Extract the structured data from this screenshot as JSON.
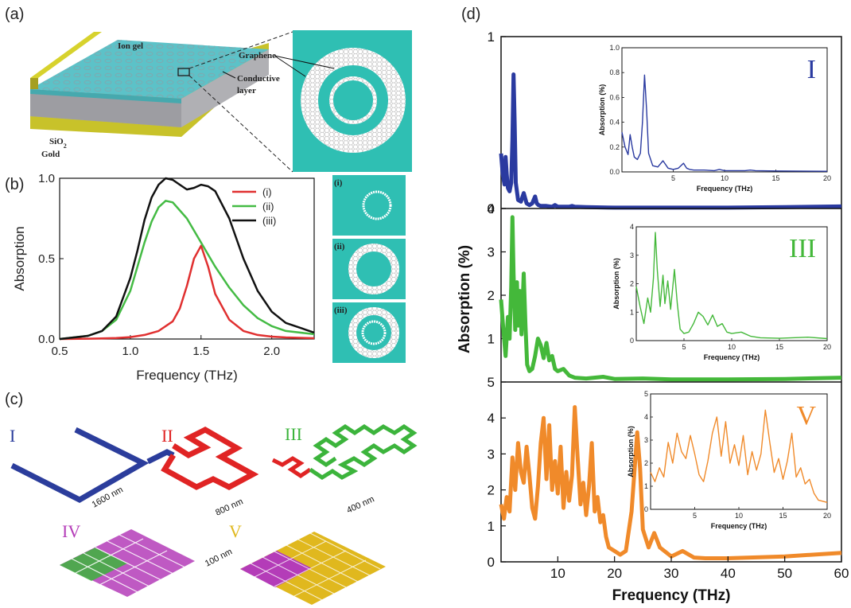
{
  "panels": {
    "a": {
      "label": "(a)",
      "layers": {
        "ion_gel": "Ion gel",
        "sio2_main": "SiO",
        "sio2_sub": "2",
        "gold": "Gold",
        "graphene": "Graphene",
        "conductive_line1": "Conductive",
        "conductive_line2": "layer"
      },
      "colors": {
        "teal": "#2fbfb3",
        "gold": "#c8c22a",
        "gray": "#a9a9ad"
      }
    },
    "b": {
      "label": "(b)",
      "inset_labels": [
        "(i)",
        "(ii)",
        "(iii)"
      ]
    },
    "c": {
      "label": "(c)",
      "orders": [
        "I",
        "II",
        "III",
        "IV",
        "V"
      ],
      "dimensions": [
        "1600 nm",
        "800 nm",
        "400 nm",
        "100 nm"
      ],
      "colors": {
        "I": "#2b3d9c",
        "II": "#e02424",
        "III": "#3cb43c",
        "IV": "#b43cb8",
        "V": "#e0b81e"
      }
    },
    "d": {
      "label": "(d)"
    }
  },
  "chart_data": [
    {
      "id": "b",
      "type": "line",
      "xlabel": "Frequency (THz)",
      "ylabel": "Absorption",
      "xlim": [
        0.5,
        2.3
      ],
      "ylim": [
        0.0,
        1.0
      ],
      "xticks": [
        "0.5",
        "1.0",
        "1.5",
        "2.0"
      ],
      "yticks": [
        "0.0",
        "0.5",
        "1.0"
      ],
      "legend_position": "top-right",
      "series": [
        {
          "name": "(i)",
          "color": "#e03030",
          "x": [
            0.5,
            0.7,
            0.9,
            1.0,
            1.1,
            1.2,
            1.3,
            1.35,
            1.4,
            1.45,
            1.5,
            1.55,
            1.6,
            1.7,
            1.8,
            1.9,
            2.0,
            2.1,
            2.3
          ],
          "y": [
            0.0,
            0.002,
            0.006,
            0.012,
            0.025,
            0.05,
            0.11,
            0.19,
            0.33,
            0.5,
            0.58,
            0.45,
            0.28,
            0.12,
            0.05,
            0.025,
            0.015,
            0.01,
            0.005
          ]
        },
        {
          "name": "(ii)",
          "color": "#44bb44",
          "x": [
            0.5,
            0.7,
            0.8,
            0.9,
            1.0,
            1.05,
            1.1,
            1.15,
            1.2,
            1.25,
            1.3,
            1.4,
            1.5,
            1.6,
            1.7,
            1.8,
            1.9,
            2.0,
            2.1,
            2.3
          ],
          "y": [
            0.0,
            0.02,
            0.05,
            0.12,
            0.3,
            0.45,
            0.6,
            0.73,
            0.82,
            0.86,
            0.85,
            0.75,
            0.6,
            0.45,
            0.32,
            0.21,
            0.13,
            0.08,
            0.05,
            0.03
          ]
        },
        {
          "name": "(iii)",
          "color": "#111111",
          "x": [
            0.5,
            0.7,
            0.8,
            0.9,
            1.0,
            1.05,
            1.1,
            1.15,
            1.2,
            1.25,
            1.3,
            1.35,
            1.4,
            1.45,
            1.5,
            1.55,
            1.6,
            1.7,
            1.8,
            1.9,
            2.0,
            2.1,
            2.3
          ],
          "y": [
            0.0,
            0.02,
            0.05,
            0.14,
            0.38,
            0.55,
            0.74,
            0.88,
            0.96,
            1.0,
            0.99,
            0.96,
            0.93,
            0.94,
            0.96,
            0.95,
            0.92,
            0.75,
            0.5,
            0.3,
            0.17,
            0.1,
            0.04
          ]
        }
      ]
    },
    {
      "id": "d",
      "type": "line",
      "xlabel": "Frequency (THz)",
      "ylabel": "Absorption (%)",
      "xlim": [
        0,
        60
      ],
      "xticks": [
        "10",
        "20",
        "30",
        "40",
        "50",
        "60"
      ],
      "subplots": [
        {
          "name": "I",
          "color": "#2a3aa0",
          "ylim": [
            0,
            1
          ],
          "yticks": [
            "0",
            "1"
          ],
          "x": [
            0,
            0.3,
            0.6,
            0.8,
            1.0,
            1.2,
            1.5,
            1.8,
            2.0,
            2.2,
            2.4,
            2.6,
            3.0,
            3.5,
            4.0,
            4.5,
            5.0,
            5.5,
            6.0,
            6.3,
            6.6,
            7.0,
            8,
            9,
            9.5,
            10,
            12,
            12.5,
            13,
            15,
            20,
            30,
            40,
            50,
            60
          ],
          "y": [
            0.32,
            0.2,
            0.14,
            0.3,
            0.2,
            0.12,
            0.1,
            0.15,
            0.4,
            0.78,
            0.5,
            0.15,
            0.05,
            0.04,
            0.09,
            0.03,
            0.02,
            0.03,
            0.07,
            0.03,
            0.02,
            0.015,
            0.015,
            0.01,
            0.02,
            0.01,
            0.01,
            0.015,
            0.01,
            0.008,
            0.005,
            0.005,
            0.005,
            0.008,
            0.012
          ],
          "inset": {
            "xlim": [
              0,
              20
            ],
            "ylim": [
              0,
              1.0
            ],
            "xticks": [
              "5",
              "10",
              "15",
              "20"
            ],
            "yticks": [
              "0.0",
              "0.2",
              "0.4",
              "0.6",
              "0.8",
              "1.0"
            ],
            "xlabel": "Frequency (THz)",
            "ylabel": "Absorption (%)"
          }
        },
        {
          "name": "III",
          "color": "#44b83a",
          "ylim": [
            0,
            4
          ],
          "yticks": [
            "1",
            "2",
            "3",
            "4"
          ],
          "x": [
            0,
            0.4,
            0.8,
            1.2,
            1.5,
            1.8,
            2.0,
            2.2,
            2.5,
            2.8,
            3.0,
            3.3,
            3.6,
            4.0,
            4.3,
            4.6,
            5,
            5.5,
            6,
            6.5,
            7,
            7.5,
            8,
            8.5,
            9,
            9.5,
            10,
            11,
            12,
            13,
            15,
            18,
            20,
            25,
            30,
            40,
            50,
            60
          ],
          "y": [
            1.9,
            1.2,
            0.6,
            1.5,
            1.0,
            2.2,
            3.8,
            2.5,
            1.2,
            2.3,
            1.3,
            2.1,
            1.1,
            2.5,
            1.3,
            0.4,
            0.25,
            0.3,
            0.6,
            1.0,
            0.85,
            0.55,
            0.9,
            0.5,
            0.6,
            0.3,
            0.25,
            0.3,
            0.15,
            0.1,
            0.08,
            0.12,
            0.07,
            0.08,
            0.06,
            0.06,
            0.07,
            0.1
          ],
          "inset": {
            "xlim": [
              0,
              20
            ],
            "ylim": [
              0,
              4
            ],
            "xticks": [
              "5",
              "10",
              "15",
              "20"
            ],
            "yticks": [
              "0",
              "1",
              "2",
              "3",
              "4"
            ],
            "xlabel": "Frequency (THz)",
            "ylabel": "Absorption (%)"
          }
        },
        {
          "name": "V",
          "color": "#f08a2a",
          "ylim": [
            0,
            5
          ],
          "yticks": [
            "0",
            "1",
            "2",
            "3",
            "4",
            "5"
          ],
          "x": [
            0,
            0.5,
            1,
            1.5,
            2,
            2.5,
            3,
            3.5,
            4,
            4.5,
            5,
            5.5,
            6,
            6.5,
            7,
            7.5,
            8,
            8.5,
            9,
            9.5,
            10,
            10.5,
            11,
            11.5,
            12,
            12.5,
            13,
            13.5,
            14,
            14.5,
            15,
            15.5,
            16,
            16.5,
            17,
            17.5,
            18,
            18.5,
            19,
            20,
            21,
            22,
            23,
            24,
            24.5,
            25,
            26,
            27,
            28,
            30,
            32,
            34,
            36,
            40,
            50,
            60
          ],
          "y": [
            1.6,
            1.2,
            1.8,
            1.4,
            2.9,
            2.0,
            3.3,
            2.5,
            2.2,
            3.2,
            2.4,
            1.5,
            1.2,
            2.1,
            3.3,
            4.0,
            2.3,
            3.8,
            2.0,
            2.8,
            1.9,
            3.2,
            1.5,
            2.5,
            1.7,
            2.4,
            4.3,
            2.9,
            1.6,
            2.2,
            1.3,
            2.1,
            3.3,
            1.4,
            1.8,
            1.1,
            1.3,
            0.7,
            0.4,
            0.3,
            0.2,
            0.3,
            1.4,
            3.6,
            2.6,
            0.9,
            0.4,
            0.8,
            0.4,
            0.15,
            0.3,
            0.12,
            0.1,
            0.1,
            0.15,
            0.25
          ],
          "inset": {
            "xlim": [
              0,
              20
            ],
            "ylim": [
              0,
              5
            ],
            "xticks": [
              "5",
              "10",
              "15",
              "20"
            ],
            "yticks": [
              "0",
              "1",
              "2",
              "3",
              "4",
              "5"
            ],
            "xlabel": "Frequency (THz)",
            "ylabel": "Absorption (%)"
          }
        }
      ]
    }
  ]
}
